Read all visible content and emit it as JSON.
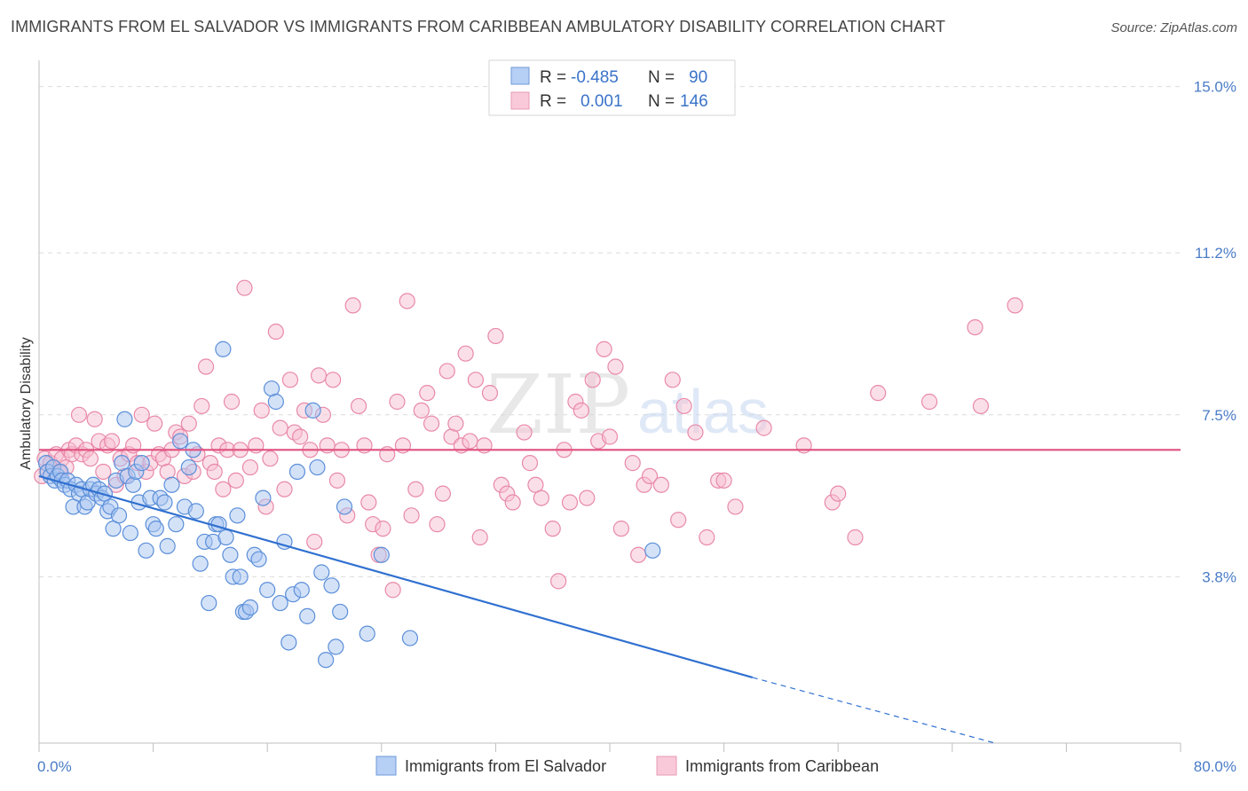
{
  "title": "IMMIGRANTS FROM EL SALVADOR VS IMMIGRANTS FROM CARIBBEAN AMBULATORY DISABILITY CORRELATION CHART",
  "source": "Source: ZipAtlas.com",
  "watermark": {
    "zip": "ZIP",
    "atlas": "atlas"
  },
  "colors": {
    "blue_fill": "#a9c6f2",
    "blue_stroke": "#5b8fd9",
    "blue_line": "#3070d0",
    "pink_fill": "#f7bfd2",
    "pink_stroke": "#e889a9",
    "pink_line": "#e0507f",
    "tick_text": "#4a7cc7",
    "grid": "#dcdcdc"
  },
  "legend": {
    "rows": [
      {
        "r_label": "R =",
        "r_value": "-0.485",
        "n_label": "N =",
        "n_value": "90"
      },
      {
        "r_label": "R =",
        "r_value": "0.001",
        "n_label": "N =",
        "n_value": "146"
      }
    ]
  },
  "chart_data": {
    "type": "scatter",
    "ylabel": "Ambulatory Disability",
    "xlim": [
      0,
      80
    ],
    "ylim": [
      0,
      15.6
    ],
    "x_tick_labels": [
      {
        "value": 0,
        "label": "0.0%"
      },
      {
        "value": 80,
        "label": "80.0%"
      }
    ],
    "y_tick_labels": [
      {
        "value": 3.8,
        "label": "3.8%"
      },
      {
        "value": 7.5,
        "label": "7.5%"
      },
      {
        "value": 11.2,
        "label": "11.2%"
      },
      {
        "value": 15.0,
        "label": "15.0%"
      }
    ],
    "grid": true,
    "legend_position": "top-center",
    "series": [
      {
        "name": "Immigrants from El Salvador",
        "color": "blue",
        "trend": {
          "x0": 0,
          "y0": 6.1,
          "x1": 50,
          "y1": 1.5,
          "dash_to_x": 67,
          "dash_to_y": 0.0
        },
        "points": [
          [
            0.5,
            6.4
          ],
          [
            0.6,
            6.2
          ],
          [
            0.8,
            6.1
          ],
          [
            1.0,
            6.3
          ],
          [
            1.1,
            6.0
          ],
          [
            1.3,
            6.1
          ],
          [
            1.5,
            6.2
          ],
          [
            1.6,
            6.0
          ],
          [
            1.8,
            5.9
          ],
          [
            2.0,
            6.0
          ],
          [
            2.2,
            5.8
          ],
          [
            2.4,
            5.4
          ],
          [
            2.6,
            5.9
          ],
          [
            2.8,
            5.7
          ],
          [
            3.0,
            5.8
          ],
          [
            3.2,
            5.4
          ],
          [
            3.4,
            5.5
          ],
          [
            3.6,
            5.8
          ],
          [
            3.8,
            5.9
          ],
          [
            4.0,
            5.7
          ],
          [
            4.2,
            5.8
          ],
          [
            4.4,
            5.6
          ],
          [
            4.6,
            5.7
          ],
          [
            4.8,
            5.3
          ],
          [
            5.0,
            5.4
          ],
          [
            5.2,
            4.9
          ],
          [
            5.4,
            6.0
          ],
          [
            5.6,
            5.2
          ],
          [
            5.8,
            6.4
          ],
          [
            6.0,
            7.4
          ],
          [
            6.2,
            6.1
          ],
          [
            6.4,
            4.8
          ],
          [
            6.6,
            5.9
          ],
          [
            6.8,
            6.2
          ],
          [
            7.0,
            5.5
          ],
          [
            7.2,
            6.4
          ],
          [
            7.5,
            4.4
          ],
          [
            7.8,
            5.6
          ],
          [
            8.0,
            5.0
          ],
          [
            8.2,
            4.9
          ],
          [
            8.5,
            5.6
          ],
          [
            8.8,
            5.5
          ],
          [
            9.0,
            4.5
          ],
          [
            9.3,
            5.9
          ],
          [
            9.6,
            5.0
          ],
          [
            9.9,
            6.9
          ],
          [
            10.2,
            5.4
          ],
          [
            10.5,
            6.3
          ],
          [
            10.8,
            6.7
          ],
          [
            11.0,
            5.3
          ],
          [
            11.3,
            4.1
          ],
          [
            11.6,
            4.6
          ],
          [
            11.9,
            3.2
          ],
          [
            12.2,
            4.6
          ],
          [
            12.4,
            5.0
          ],
          [
            12.6,
            5.0
          ],
          [
            12.9,
            9.0
          ],
          [
            13.1,
            4.7
          ],
          [
            13.4,
            4.3
          ],
          [
            13.6,
            3.8
          ],
          [
            13.9,
            5.2
          ],
          [
            14.1,
            3.8
          ],
          [
            14.3,
            3.0
          ],
          [
            14.5,
            3.0
          ],
          [
            14.8,
            3.1
          ],
          [
            15.1,
            4.3
          ],
          [
            15.4,
            4.2
          ],
          [
            15.7,
            5.6
          ],
          [
            16.0,
            3.5
          ],
          [
            16.3,
            8.1
          ],
          [
            16.6,
            7.8
          ],
          [
            16.9,
            3.2
          ],
          [
            17.2,
            4.6
          ],
          [
            17.5,
            2.3
          ],
          [
            17.8,
            3.4
          ],
          [
            18.1,
            6.2
          ],
          [
            18.4,
            3.5
          ],
          [
            18.8,
            2.9
          ],
          [
            19.2,
            7.6
          ],
          [
            19.5,
            6.3
          ],
          [
            19.8,
            3.9
          ],
          [
            20.1,
            1.9
          ],
          [
            20.5,
            3.6
          ],
          [
            20.8,
            2.2
          ],
          [
            21.1,
            3.0
          ],
          [
            21.4,
            5.4
          ],
          [
            23.0,
            2.5
          ],
          [
            24.0,
            4.3
          ],
          [
            26.0,
            2.4
          ],
          [
            43.0,
            4.4
          ]
        ]
      },
      {
        "name": "Immigrants from Caribbean",
        "color": "pink",
        "trend": {
          "x0": 0,
          "y0": 6.7,
          "x1": 80,
          "y1": 6.7
        },
        "points": [
          [
            0.2,
            6.1
          ],
          [
            0.4,
            6.5
          ],
          [
            0.6,
            6.2
          ],
          [
            0.8,
            6.4
          ],
          [
            1.0,
            6.3
          ],
          [
            1.2,
            6.6
          ],
          [
            1.4,
            6.2
          ],
          [
            1.6,
            6.5
          ],
          [
            1.9,
            6.3
          ],
          [
            2.1,
            6.7
          ],
          [
            2.3,
            6.6
          ],
          [
            2.6,
            6.8
          ],
          [
            2.8,
            7.5
          ],
          [
            3.0,
            6.6
          ],
          [
            3.3,
            6.7
          ],
          [
            3.6,
            6.5
          ],
          [
            3.9,
            7.4
          ],
          [
            4.2,
            6.9
          ],
          [
            4.5,
            6.2
          ],
          [
            4.8,
            6.8
          ],
          [
            5.1,
            6.9
          ],
          [
            5.4,
            5.9
          ],
          [
            5.7,
            6.5
          ],
          [
            6.0,
            6.1
          ],
          [
            6.3,
            6.6
          ],
          [
            6.6,
            6.8
          ],
          [
            6.9,
            6.4
          ],
          [
            7.2,
            7.5
          ],
          [
            7.5,
            6.2
          ],
          [
            7.8,
            6.4
          ],
          [
            8.1,
            7.3
          ],
          [
            8.4,
            6.6
          ],
          [
            8.7,
            6.5
          ],
          [
            9.0,
            6.2
          ],
          [
            9.3,
            6.7
          ],
          [
            9.6,
            7.1
          ],
          [
            9.9,
            7.0
          ],
          [
            10.2,
            6.1
          ],
          [
            10.5,
            7.3
          ],
          [
            10.8,
            6.2
          ],
          [
            11.1,
            6.6
          ],
          [
            11.4,
            7.7
          ],
          [
            11.7,
            8.6
          ],
          [
            12.0,
            6.4
          ],
          [
            12.3,
            6.2
          ],
          [
            12.6,
            6.8
          ],
          [
            12.9,
            5.8
          ],
          [
            13.2,
            6.7
          ],
          [
            13.5,
            7.8
          ],
          [
            13.8,
            6.0
          ],
          [
            14.1,
            6.7
          ],
          [
            14.4,
            10.4
          ],
          [
            14.8,
            6.3
          ],
          [
            15.2,
            6.8
          ],
          [
            15.6,
            7.6
          ],
          [
            15.9,
            5.4
          ],
          [
            16.2,
            6.5
          ],
          [
            16.6,
            9.4
          ],
          [
            16.9,
            7.2
          ],
          [
            17.2,
            5.8
          ],
          [
            17.6,
            8.3
          ],
          [
            17.9,
            7.1
          ],
          [
            18.3,
            7.0
          ],
          [
            18.6,
            7.6
          ],
          [
            19.0,
            6.7
          ],
          [
            19.3,
            4.6
          ],
          [
            19.6,
            8.4
          ],
          [
            19.9,
            7.5
          ],
          [
            20.2,
            6.8
          ],
          [
            20.6,
            8.3
          ],
          [
            20.9,
            6.0
          ],
          [
            21.2,
            6.7
          ],
          [
            21.6,
            5.2
          ],
          [
            22.0,
            10.0
          ],
          [
            22.4,
            7.7
          ],
          [
            22.8,
            6.8
          ],
          [
            23.1,
            5.5
          ],
          [
            23.4,
            5.0
          ],
          [
            23.8,
            4.3
          ],
          [
            24.1,
            4.9
          ],
          [
            24.4,
            6.6
          ],
          [
            24.8,
            3.5
          ],
          [
            25.1,
            7.8
          ],
          [
            25.5,
            6.8
          ],
          [
            25.8,
            10.1
          ],
          [
            26.1,
            5.2
          ],
          [
            26.4,
            5.8
          ],
          [
            26.8,
            7.6
          ],
          [
            27.2,
            8.0
          ],
          [
            27.5,
            7.3
          ],
          [
            27.9,
            5.0
          ],
          [
            28.3,
            5.7
          ],
          [
            28.6,
            8.5
          ],
          [
            28.9,
            7.0
          ],
          [
            29.2,
            7.3
          ],
          [
            29.6,
            6.8
          ],
          [
            29.9,
            8.9
          ],
          [
            30.2,
            6.9
          ],
          [
            30.6,
            8.3
          ],
          [
            30.9,
            4.7
          ],
          [
            31.2,
            6.8
          ],
          [
            31.6,
            8.0
          ],
          [
            32.0,
            9.3
          ],
          [
            32.4,
            5.9
          ],
          [
            32.8,
            5.7
          ],
          [
            33.2,
            5.5
          ],
          [
            34.0,
            7.1
          ],
          [
            34.4,
            6.4
          ],
          [
            34.8,
            5.9
          ],
          [
            35.2,
            5.6
          ],
          [
            36.0,
            4.9
          ],
          [
            36.4,
            3.7
          ],
          [
            36.8,
            6.7
          ],
          [
            37.2,
            5.5
          ],
          [
            37.6,
            7.8
          ],
          [
            38.0,
            7.6
          ],
          [
            38.4,
            5.6
          ],
          [
            38.8,
            8.3
          ],
          [
            39.2,
            6.9
          ],
          [
            39.6,
            9.0
          ],
          [
            40.0,
            7.0
          ],
          [
            40.4,
            8.6
          ],
          [
            40.8,
            4.9
          ],
          [
            41.6,
            6.4
          ],
          [
            42.0,
            4.3
          ],
          [
            42.4,
            5.9
          ],
          [
            42.8,
            6.1
          ],
          [
            43.6,
            5.9
          ],
          [
            44.4,
            8.3
          ],
          [
            44.8,
            5.1
          ],
          [
            45.2,
            7.7
          ],
          [
            46.0,
            7.1
          ],
          [
            46.8,
            4.7
          ],
          [
            47.6,
            6.0
          ],
          [
            48.0,
            6.0
          ],
          [
            48.8,
            5.4
          ],
          [
            50.8,
            7.2
          ],
          [
            53.6,
            6.8
          ],
          [
            55.6,
            5.5
          ],
          [
            56.0,
            5.7
          ],
          [
            57.2,
            4.7
          ],
          [
            58.8,
            8.0
          ],
          [
            62.4,
            7.8
          ],
          [
            65.6,
            9.5
          ],
          [
            66.0,
            7.7
          ],
          [
            68.4,
            10.0
          ]
        ]
      }
    ]
  },
  "bottom_legend": [
    {
      "label": "Immigrants from El Salvador",
      "color": "blue"
    },
    {
      "label": "Immigrants from Caribbean",
      "color": "pink"
    }
  ]
}
